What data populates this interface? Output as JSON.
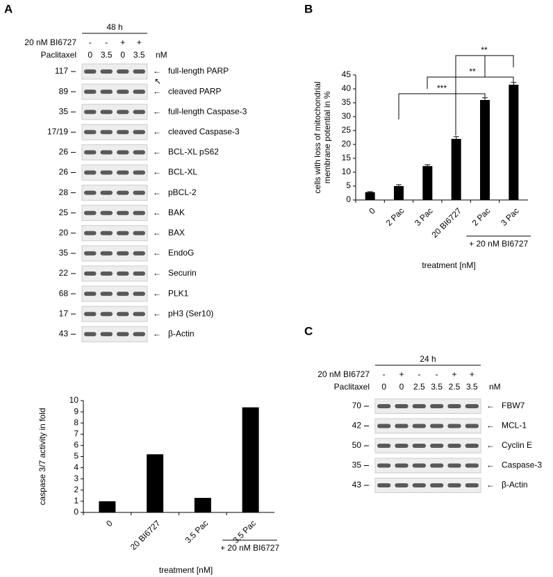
{
  "panel_labels": [
    "A",
    "B",
    "C"
  ],
  "blot_a": {
    "time": "48 h",
    "treatments": [
      {
        "label": "20 nM BI6727",
        "lanes": [
          "-",
          "-",
          "+",
          "+"
        ]
      },
      {
        "label": "Paclitaxel",
        "lanes": [
          "0",
          "3.5",
          "0",
          "3.5"
        ],
        "unit": "nM"
      }
    ],
    "rows": [
      {
        "marker": "117",
        "label": "full-length PARP"
      },
      {
        "marker": "89",
        "label": "cleaved PARP"
      },
      {
        "marker": "35",
        "label": "full-length Caspase-3"
      },
      {
        "marker": "17/19",
        "label": "cleaved Caspase-3"
      },
      {
        "marker": "26",
        "label": "BCL-XL pS62"
      },
      {
        "marker": "26",
        "label": "BCL-XL"
      },
      {
        "marker": "28",
        "label": "pBCL-2"
      },
      {
        "marker": "25",
        "label": "BAK"
      },
      {
        "marker": "20",
        "label": "BAX"
      },
      {
        "marker": "35",
        "label": "EndoG"
      },
      {
        "marker": "22",
        "label": "Securin"
      },
      {
        "marker": "68",
        "label": "PLK1"
      },
      {
        "marker": "17",
        "label": "pH3 (Ser10)"
      },
      {
        "marker": "43",
        "label": "β-Actin"
      }
    ]
  },
  "blot_c": {
    "time": "24 h",
    "treatments": [
      {
        "label": "20 nM BI6727",
        "lanes": [
          "-",
          "+",
          "-",
          "-",
          "+",
          "+"
        ]
      },
      {
        "label": "Paclitaxel",
        "lanes": [
          "0",
          "0",
          "2.5",
          "3.5",
          "2.5",
          "3.5"
        ],
        "unit": "nM"
      }
    ],
    "rows": [
      {
        "marker": "70",
        "label": "FBW7"
      },
      {
        "marker": "42",
        "label": "MCL-1"
      },
      {
        "marker": "50",
        "label": "Cyclin E"
      },
      {
        "marker": "35",
        "label": "Caspase-3"
      },
      {
        "marker": "43",
        "label": "β-Actin"
      }
    ]
  },
  "chart_data": [
    {
      "type": "bar",
      "ylabel": [
        "cells with loss of mitochondrial",
        "membrane potential in %"
      ],
      "xlabel": "treatment [nM]",
      "categories": [
        "0",
        "2 Pac",
        "3 Pac",
        "20 BI6727",
        "2 Pac",
        "3 Pac"
      ],
      "values": [
        2.8,
        5,
        12.2,
        22,
        36,
        41.5
      ],
      "errors": [
        0.2,
        0.5,
        0.5,
        0.8,
        0.8,
        0.8
      ],
      "color": "#000000",
      "ylim": [
        0,
        45
      ],
      "yticks": [
        0,
        5,
        10,
        15,
        20,
        25,
        30,
        35,
        40,
        45
      ],
      "group_label": "+ 20 nM BI6727",
      "annotations": [
        "***",
        "**",
        "**"
      ]
    },
    {
      "type": "bar",
      "ylabel": [
        "caspase 3/7 activity in fold"
      ],
      "xlabel": "treatment [nM]",
      "categories": [
        "0",
        "20 BI6727",
        "3.5 Pac",
        "3.5 Pac"
      ],
      "values": [
        1,
        5.2,
        1.3,
        9.4
      ],
      "color": "#000000",
      "ylim": [
        0,
        10
      ],
      "yticks": [
        0,
        1,
        2,
        3,
        4,
        5,
        6,
        7,
        8,
        9,
        10
      ],
      "group_label": "+ 20 nM BI6727"
    }
  ]
}
